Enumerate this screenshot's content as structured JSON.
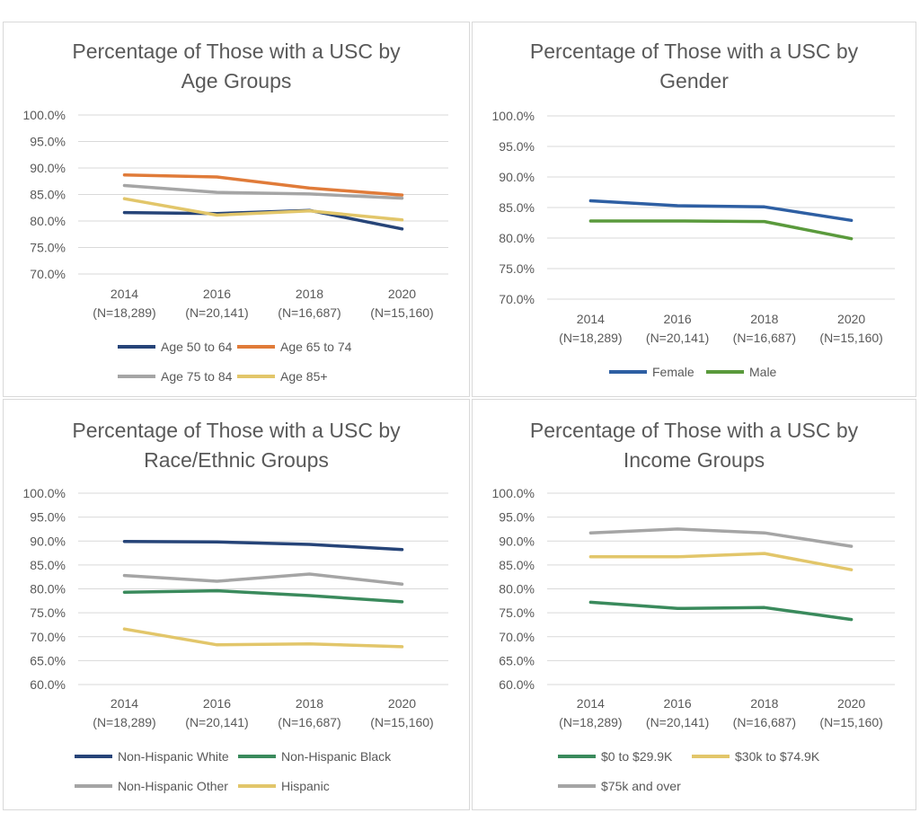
{
  "chart_data": [
    {
      "type": "line",
      "title_lines": [
        "Percentage of Those with a USC by",
        "Age Groups"
      ],
      "categories": [
        "2014",
        "2016",
        "2018",
        "2020"
      ],
      "category_sublabels": [
        "(N=18,289)",
        "(N=20,141)",
        "(N=16,687)",
        "(N=15,160)"
      ],
      "y_ticks": [
        "100.0%",
        "95.0%",
        "90.0%",
        "85.0%",
        "80.0%",
        "75.0%",
        "70.0%"
      ],
      "ylim": [
        70,
        100
      ],
      "series": [
        {
          "name": "Age 50 to 64",
          "color": "#264478",
          "values": [
            81.6,
            81.4,
            82.0,
            78.5
          ]
        },
        {
          "name": "Age 65 to 74",
          "color": "#e07b39",
          "values": [
            88.7,
            88.3,
            86.2,
            84.9
          ]
        },
        {
          "name": "Age 75 to 84",
          "color": "#a5a5a5",
          "values": [
            86.7,
            85.4,
            85.1,
            84.3
          ]
        },
        {
          "name": "Age 85+",
          "color": "#e2c66a",
          "values": [
            84.2,
            81.1,
            81.9,
            80.2
          ]
        }
      ],
      "legend_position": "bottom"
    },
    {
      "type": "line",
      "title_lines": [
        "Percentage of Those with a USC by",
        "Gender"
      ],
      "categories": [
        "2014",
        "2016",
        "2018",
        "2020"
      ],
      "category_sublabels": [
        "(N=18,289)",
        "(N=20,141)",
        "(N=16,687)",
        "(N=15,160)"
      ],
      "y_ticks": [
        "100.0%",
        "95.0%",
        "90.0%",
        "85.0%",
        "80.0%",
        "75.0%",
        "70.0%"
      ],
      "ylim": [
        70,
        100
      ],
      "series": [
        {
          "name": "Female",
          "color": "#2e5fa3",
          "values": [
            86.1,
            85.3,
            85.1,
            82.9
          ]
        },
        {
          "name": "Male",
          "color": "#5a9a3c",
          "values": [
            82.8,
            82.8,
            82.7,
            79.9
          ]
        }
      ],
      "legend_position": "bottom"
    },
    {
      "type": "line",
      "title_lines": [
        "Percentage of Those with a USC by",
        "Race/Ethnic Groups"
      ],
      "categories": [
        "2014",
        "2016",
        "2018",
        "2020"
      ],
      "category_sublabels": [
        "(N=18,289)",
        "(N=20,141)",
        "(N=16,687)",
        "(N=15,160)"
      ],
      "y_ticks": [
        "100.0%",
        "95.0%",
        "90.0%",
        "85.0%",
        "80.0%",
        "75.0%",
        "70.0%",
        "65.0%",
        "60.0%"
      ],
      "ylim": [
        60,
        100
      ],
      "series": [
        {
          "name": "Non-Hispanic White",
          "color": "#264478",
          "values": [
            89.9,
            89.8,
            89.3,
            88.2
          ]
        },
        {
          "name": "Non-Hispanic Black",
          "color": "#3a8a5c",
          "values": [
            79.3,
            79.6,
            78.6,
            77.3
          ]
        },
        {
          "name": "Non-Hispanic Other",
          "color": "#a5a5a5",
          "values": [
            82.8,
            81.6,
            83.1,
            81.0
          ]
        },
        {
          "name": "Hispanic",
          "color": "#e2c66a",
          "values": [
            71.6,
            68.3,
            68.5,
            67.9
          ]
        }
      ],
      "legend_position": "bottom"
    },
    {
      "type": "line",
      "title_lines": [
        "Percentage of Those with a USC by",
        "Income Groups"
      ],
      "categories": [
        "2014",
        "2016",
        "2018",
        "2020"
      ],
      "category_sublabels": [
        "(N=18,289)",
        "(N=20,141)",
        "(N=16,687)",
        "(N=15,160)"
      ],
      "y_ticks": [
        "100.0%",
        "95.0%",
        "90.0%",
        "85.0%",
        "80.0%",
        "75.0%",
        "70.0%",
        "65.0%",
        "60.0%"
      ],
      "ylim": [
        60,
        100
      ],
      "series": [
        {
          "name": "$0 to $29.9K",
          "color": "#3a8a5c",
          "values": [
            77.2,
            75.9,
            76.1,
            73.6
          ]
        },
        {
          "name": "$30k to $74.9K",
          "color": "#e2c66a",
          "values": [
            86.7,
            86.7,
            87.4,
            84.0
          ]
        },
        {
          "name": "$75k and over",
          "color": "#a5a5a5",
          "values": [
            91.7,
            92.5,
            91.7,
            88.9
          ]
        }
      ],
      "legend_position": "bottom"
    }
  ]
}
